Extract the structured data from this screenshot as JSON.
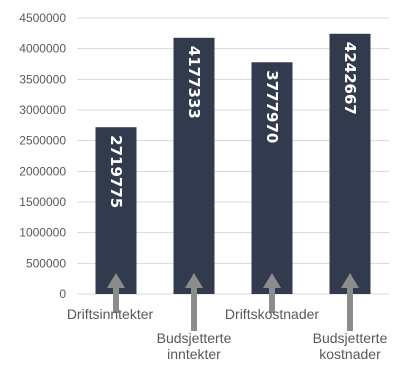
{
  "chart_data": {
    "type": "bar",
    "categories": [
      [
        "Driftsinntekter"
      ],
      [
        "Budsjetterte",
        "inntekter"
      ],
      [
        "Driftskostnader"
      ],
      [
        "Budsjetterte",
        "kostnader"
      ]
    ],
    "values": [
      2719775,
      4177333,
      3777970,
      4242667
    ],
    "data_labels": [
      "2719775",
      "4177333",
      "3777970",
      "4242667"
    ],
    "ylim": [
      0,
      4500000
    ],
    "yticks": [
      0,
      500000,
      1000000,
      1500000,
      2000000,
      2500000,
      3000000,
      3500000,
      4000000,
      4500000
    ],
    "ytick_labels": [
      "0",
      "500000",
      "1000000",
      "1500000",
      "2000000",
      "2500000",
      "3000000",
      "3500000",
      "4000000",
      "4500000"
    ],
    "grid": true,
    "legend": "none",
    "title": "",
    "xlabel": "",
    "ylabel": "",
    "colors": {
      "bar": "#323b4d",
      "grid": "#d9d9d9",
      "arrow": "#8c8c8c",
      "text": "#595959",
      "label": "#ffffff"
    }
  }
}
